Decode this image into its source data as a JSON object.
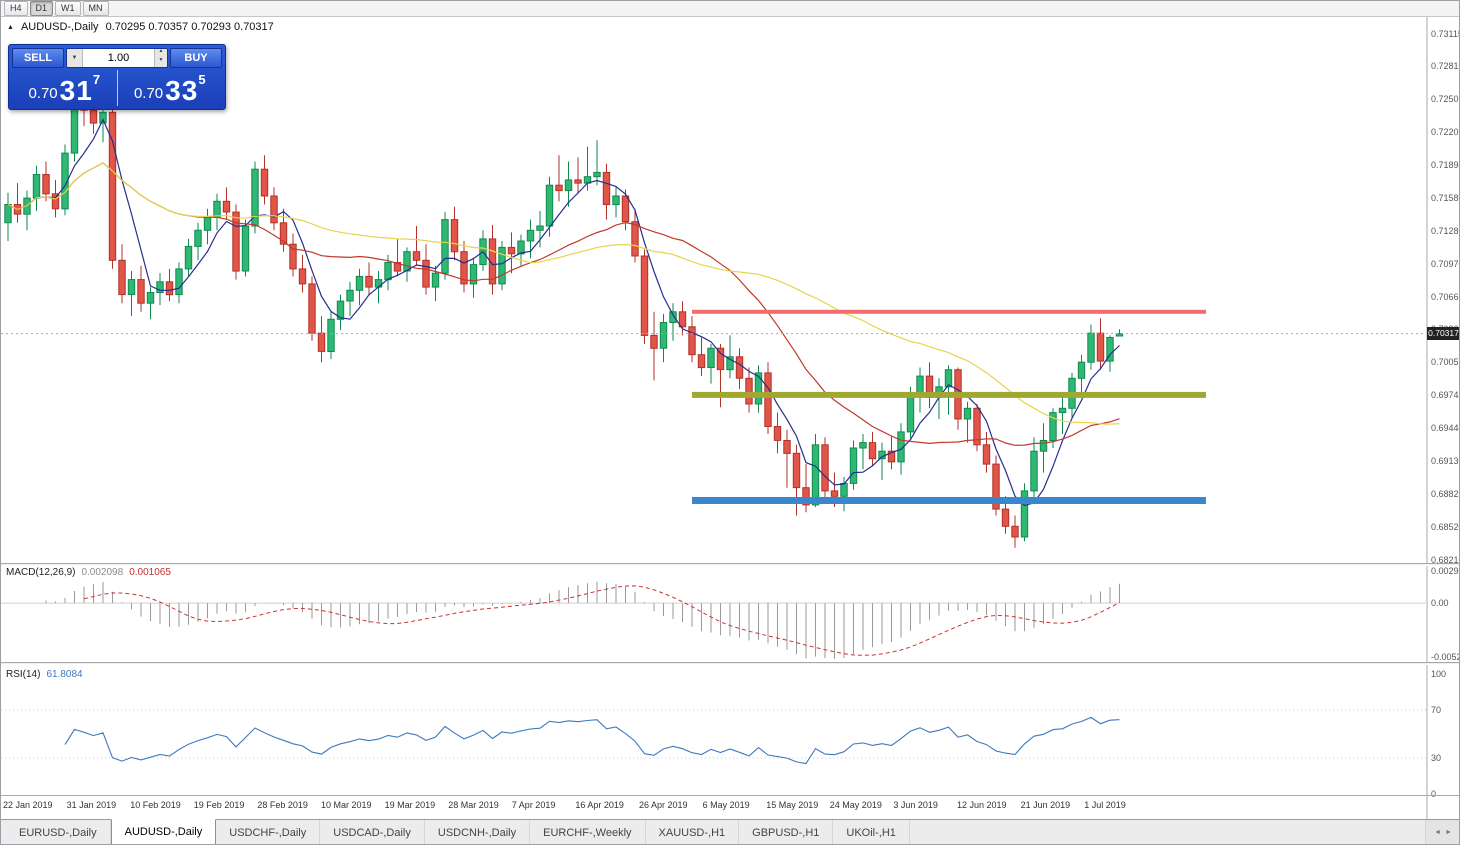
{
  "toolbar": {
    "periods": [
      {
        "label": "H4",
        "active": false
      },
      {
        "label": "D1",
        "active": true
      },
      {
        "label": "W1",
        "active": false
      },
      {
        "label": "MN",
        "active": false
      }
    ]
  },
  "icons": {
    "tick_up": "▲",
    "dropdown_down": "▼",
    "spinner_up": "▲",
    "spinner_down": "▼",
    "tab_scroll_left": "◄",
    "tab_scroll_right": "►"
  },
  "trade_panel": {
    "sell_label": "SELL",
    "buy_label": "BUY",
    "volume": "1.00",
    "sell_price": {
      "base": "0.70",
      "pips": "31",
      "pipette": "7"
    },
    "buy_price": {
      "base": "0.70",
      "pips": "33",
      "pipette": "5"
    }
  },
  "tabs": {
    "items": [
      {
        "label": "EURUSD-,Daily",
        "active": false
      },
      {
        "label": "AUDUSD-,Daily",
        "active": true
      },
      {
        "label": "USDCHF-,Daily",
        "active": false
      },
      {
        "label": "USDCAD-,Daily",
        "active": false
      },
      {
        "label": "USDCNH-,Daily",
        "active": false
      },
      {
        "label": "EURCHF-,Weekly",
        "active": false
      },
      {
        "label": "XAUUSD-,H1",
        "active": false
      },
      {
        "label": "GBPUSD-,H1",
        "active": false
      },
      {
        "label": "UKOil-,H1",
        "active": false
      }
    ]
  },
  "chart_data": {
    "type": "candlestick",
    "symbol": "AUDUSD-,Daily",
    "ohlc_text": "0.70295 0.70357 0.70293 0.70317",
    "last_quote": {
      "open": "0.70295",
      "high": "0.70357",
      "low": "0.70293",
      "close": "0.70317"
    },
    "price_axis": {
      "labels": [
        "0.73115",
        "0.72810",
        "0.72505",
        "0.72200",
        "0.71890",
        "0.71585",
        "0.71280",
        "0.70970",
        "0.70665",
        "0.70360",
        "0.70055",
        "0.69745",
        "0.69440",
        "0.69130",
        "0.68825",
        "0.68520",
        "0.68210"
      ],
      "max": 0.73115,
      "min": 0.6821,
      "current": "0.70317",
      "current_value": 0.70317
    },
    "date_labels": [
      "22 Jan 2019",
      "31 Jan 2019",
      "10 Feb 2019",
      "19 Feb 2019",
      "28 Feb 2019",
      "10 Mar 2019",
      "19 Mar 2019",
      "28 Mar 2019",
      "7 Apr 2019",
      "16 Apr 2019",
      "26 Apr 2019",
      "6 May 2019",
      "15 May 2019",
      "24 May 2019",
      "3 Jun 2019",
      "12 Jun 2019",
      "21 Jun 2019",
      "1 Jul 2019"
    ],
    "candle_colors": {
      "up": "#2eb873",
      "up_border": "#0f8a4f",
      "down": "#e25549",
      "down_border": "#b03228"
    },
    "moving_averages": [
      {
        "period": 5,
        "color": "#252e8f"
      },
      {
        "period": 20,
        "color": "#c0392b"
      },
      {
        "period": 45,
        "color": "#e8d44d"
      }
    ],
    "hlines": [
      {
        "name": "resistance-line",
        "price": 0.7052,
        "color": "#f26d6d",
        "thickness": 4
      },
      {
        "name": "mid-support-line",
        "price": 0.69745,
        "color": "#a0a832",
        "thickness": 6
      },
      {
        "name": "lower-support-line",
        "price": 0.6876,
        "color": "#3a87cc",
        "thickness": 7
      }
    ],
    "candles": [
      [
        0.7135,
        0.7163,
        0.7118,
        0.7152
      ],
      [
        0.7152,
        0.7172,
        0.7135,
        0.7143
      ],
      [
        0.7143,
        0.7165,
        0.7128,
        0.7158
      ],
      [
        0.7158,
        0.7188,
        0.7146,
        0.718
      ],
      [
        0.718,
        0.7192,
        0.7155,
        0.7162
      ],
      [
        0.7162,
        0.7175,
        0.714,
        0.7148
      ],
      [
        0.7148,
        0.7208,
        0.7142,
        0.72
      ],
      [
        0.72,
        0.7278,
        0.7192,
        0.725
      ],
      [
        0.725,
        0.7262,
        0.7225,
        0.724
      ],
      [
        0.724,
        0.7255,
        0.7218,
        0.7228
      ],
      [
        0.7228,
        0.7245,
        0.721,
        0.7238
      ],
      [
        0.7238,
        0.7244,
        0.7092,
        0.71
      ],
      [
        0.71,
        0.7115,
        0.706,
        0.7068
      ],
      [
        0.7068,
        0.709,
        0.7048,
        0.7082
      ],
      [
        0.7082,
        0.7095,
        0.7052,
        0.706
      ],
      [
        0.706,
        0.7075,
        0.7045,
        0.707
      ],
      [
        0.707,
        0.7088,
        0.7058,
        0.708
      ],
      [
        0.708,
        0.7092,
        0.7062,
        0.7068
      ],
      [
        0.7068,
        0.7098,
        0.706,
        0.7092
      ],
      [
        0.7092,
        0.712,
        0.7085,
        0.7113
      ],
      [
        0.7113,
        0.7135,
        0.71,
        0.7128
      ],
      [
        0.7128,
        0.7148,
        0.7115,
        0.714
      ],
      [
        0.714,
        0.7162,
        0.7128,
        0.7155
      ],
      [
        0.7155,
        0.7168,
        0.7138,
        0.7145
      ],
      [
        0.7145,
        0.7152,
        0.7082,
        0.709
      ],
      [
        0.709,
        0.7138,
        0.7085,
        0.7132
      ],
      [
        0.7132,
        0.7192,
        0.7125,
        0.7185
      ],
      [
        0.7185,
        0.7198,
        0.7152,
        0.716
      ],
      [
        0.716,
        0.7168,
        0.7128,
        0.7135
      ],
      [
        0.7135,
        0.7148,
        0.7108,
        0.7115
      ],
      [
        0.7115,
        0.7125,
        0.7085,
        0.7092
      ],
      [
        0.7092,
        0.7105,
        0.707,
        0.7078
      ],
      [
        0.7078,
        0.7085,
        0.7025,
        0.7032
      ],
      [
        0.7032,
        0.7048,
        0.7005,
        0.7015
      ],
      [
        0.7015,
        0.7052,
        0.7008,
        0.7045
      ],
      [
        0.7045,
        0.7068,
        0.7035,
        0.7062
      ],
      [
        0.7062,
        0.708,
        0.7048,
        0.7072
      ],
      [
        0.7072,
        0.7092,
        0.7058,
        0.7085
      ],
      [
        0.7085,
        0.7098,
        0.7068,
        0.7075
      ],
      [
        0.7075,
        0.709,
        0.706,
        0.7082
      ],
      [
        0.7082,
        0.7105,
        0.7072,
        0.7098
      ],
      [
        0.7098,
        0.712,
        0.7085,
        0.709
      ],
      [
        0.709,
        0.7112,
        0.708,
        0.7108
      ],
      [
        0.7108,
        0.7132,
        0.7095,
        0.71
      ],
      [
        0.71,
        0.7115,
        0.7068,
        0.7075
      ],
      [
        0.7075,
        0.7095,
        0.7062,
        0.7088
      ],
      [
        0.7088,
        0.7145,
        0.7082,
        0.7138
      ],
      [
        0.7138,
        0.715,
        0.71,
        0.7108
      ],
      [
        0.7108,
        0.7118,
        0.707,
        0.7078
      ],
      [
        0.7078,
        0.7102,
        0.7065,
        0.7096
      ],
      [
        0.7096,
        0.7128,
        0.709,
        0.712
      ],
      [
        0.712,
        0.7133,
        0.7068,
        0.7078
      ],
      [
        0.7078,
        0.7118,
        0.7072,
        0.7112
      ],
      [
        0.7112,
        0.7126,
        0.7088,
        0.7106
      ],
      [
        0.7106,
        0.7124,
        0.7095,
        0.7118
      ],
      [
        0.7118,
        0.7138,
        0.7102,
        0.7128
      ],
      [
        0.7128,
        0.7146,
        0.7112,
        0.7132
      ],
      [
        0.7132,
        0.7178,
        0.7122,
        0.717
      ],
      [
        0.717,
        0.7198,
        0.7155,
        0.7165
      ],
      [
        0.7165,
        0.7192,
        0.715,
        0.7175
      ],
      [
        0.7175,
        0.7196,
        0.7162,
        0.7172
      ],
      [
        0.7172,
        0.7206,
        0.7165,
        0.7178
      ],
      [
        0.7178,
        0.7212,
        0.717,
        0.7182
      ],
      [
        0.7182,
        0.719,
        0.7138,
        0.7152
      ],
      [
        0.7152,
        0.7168,
        0.714,
        0.716
      ],
      [
        0.716,
        0.7166,
        0.7128,
        0.7136
      ],
      [
        0.7136,
        0.7148,
        0.7098,
        0.7104
      ],
      [
        0.7104,
        0.711,
        0.7022,
        0.703
      ],
      [
        0.703,
        0.7052,
        0.6988,
        0.7018
      ],
      [
        0.7018,
        0.705,
        0.7005,
        0.7042
      ],
      [
        0.7042,
        0.706,
        0.7025,
        0.7052
      ],
      [
        0.7052,
        0.7062,
        0.703,
        0.7038
      ],
      [
        0.7038,
        0.7048,
        0.7005,
        0.7012
      ],
      [
        0.7012,
        0.7028,
        0.6992,
        0.7
      ],
      [
        0.7,
        0.7022,
        0.6985,
        0.7018
      ],
      [
        0.7018,
        0.7022,
        0.6963,
        0.6998
      ],
      [
        0.6998,
        0.703,
        0.699,
        0.701
      ],
      [
        0.701,
        0.7018,
        0.698,
        0.699
      ],
      [
        0.699,
        0.7,
        0.6958,
        0.6966
      ],
      [
        0.6966,
        0.7002,
        0.6958,
        0.6995
      ],
      [
        0.6995,
        0.7005,
        0.6938,
        0.6945
      ],
      [
        0.6945,
        0.6958,
        0.692,
        0.6932
      ],
      [
        0.6932,
        0.6942,
        0.6888,
        0.692
      ],
      [
        0.692,
        0.6928,
        0.6862,
        0.6888
      ],
      [
        0.6888,
        0.691,
        0.6865,
        0.6872
      ],
      [
        0.6872,
        0.6938,
        0.687,
        0.6928
      ],
      [
        0.6928,
        0.6935,
        0.6878,
        0.6885
      ],
      [
        0.6885,
        0.6902,
        0.687,
        0.688
      ],
      [
        0.688,
        0.6898,
        0.6866,
        0.6892
      ],
      [
        0.6892,
        0.6932,
        0.6886,
        0.6925
      ],
      [
        0.6925,
        0.6938,
        0.6905,
        0.693
      ],
      [
        0.693,
        0.694,
        0.6908,
        0.6915
      ],
      [
        0.6915,
        0.693,
        0.6895,
        0.6922
      ],
      [
        0.6922,
        0.6936,
        0.6905,
        0.6912
      ],
      [
        0.6912,
        0.6948,
        0.69,
        0.694
      ],
      [
        0.694,
        0.6982,
        0.6934,
        0.6975
      ],
      [
        0.6975,
        0.7,
        0.6958,
        0.6992
      ],
      [
        0.6992,
        0.7005,
        0.6962,
        0.6972
      ],
      [
        0.6972,
        0.699,
        0.6952,
        0.6982
      ],
      [
        0.6982,
        0.7002,
        0.6956,
        0.6998
      ],
      [
        0.6998,
        0.7,
        0.6942,
        0.6952
      ],
      [
        0.6952,
        0.6968,
        0.693,
        0.6962
      ],
      [
        0.6962,
        0.6966,
        0.6922,
        0.6928
      ],
      [
        0.6928,
        0.694,
        0.6902,
        0.691
      ],
      [
        0.691,
        0.6918,
        0.6862,
        0.6868
      ],
      [
        0.6868,
        0.688,
        0.6845,
        0.6852
      ],
      [
        0.6852,
        0.6862,
        0.6832,
        0.6842
      ],
      [
        0.6842,
        0.6892,
        0.6838,
        0.6885
      ],
      [
        0.6885,
        0.6935,
        0.6878,
        0.6922
      ],
      [
        0.6922,
        0.6948,
        0.6902,
        0.6932
      ],
      [
        0.6932,
        0.6962,
        0.6925,
        0.6958
      ],
      [
        0.6958,
        0.6975,
        0.6938,
        0.6962
      ],
      [
        0.6962,
        0.6995,
        0.6952,
        0.699
      ],
      [
        0.699,
        0.7012,
        0.6972,
        0.7005
      ],
      [
        0.7005,
        0.704,
        0.6998,
        0.7032
      ],
      [
        0.7032,
        0.7046,
        0.6998,
        0.7006
      ],
      [
        0.7006,
        0.703,
        0.6996,
        0.7028
      ],
      [
        0.70295,
        0.70357,
        0.70293,
        0.70317
      ]
    ],
    "indicators": {
      "macd": {
        "title": "MACD(12,26,9)",
        "main_value": "0.002098",
        "signal_value": "0.001065",
        "fast": 12,
        "slow": 26,
        "signal": 9,
        "scale_max": 0.002984,
        "scale_min": -0.005256,
        "scale_labels": [
          "0.002984",
          "0.00",
          "-0.005256"
        ],
        "bar_color": "#9a9a9a",
        "signal_color": "#cc3333"
      },
      "rsi": {
        "title": "RSI(14)",
        "value": "61.8084",
        "period": 14,
        "levels": [
          {
            "label": "100",
            "value": 100
          },
          {
            "label": "70",
            "value": 70
          },
          {
            "label": "30",
            "value": 30
          },
          {
            "label": "0",
            "value": 0
          }
        ],
        "line_color": "#3e79c0"
      }
    }
  }
}
